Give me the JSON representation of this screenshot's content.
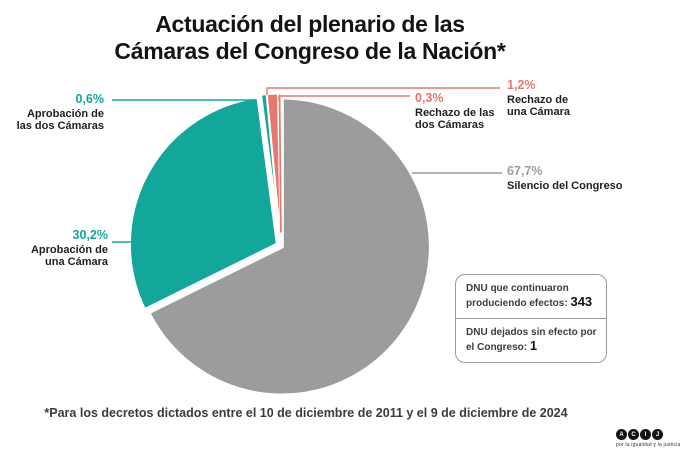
{
  "title": {
    "line1": "Actuación del plenario de las",
    "line2": "Cámaras del Congreso de la Nación*"
  },
  "colors": {
    "teal": "#13A79B",
    "salmon": "#E6786C",
    "gray": "#9C9C9C",
    "text": "#1F1F1F"
  },
  "chart_data": {
    "type": "pie",
    "title": "Actuación del plenario de las Cámaras del Congreso de la Nación*",
    "unit": "%",
    "start_angle": "12 o'clock, clockwise",
    "slices": [
      {
        "id": "silencio-del-congreso",
        "label": "Silencio del Congreso",
        "pct_label": "67,7%",
        "value": 67.7,
        "color": "#9C9C9C"
      },
      {
        "id": "aprobacion-una-camara",
        "label": "Aprobación de una Cámara",
        "pct_label": "30,2%",
        "value": 30.2,
        "color": "#13A79B"
      },
      {
        "id": "aprobacion-dos-camaras",
        "label": "Aprobación de las dos Cámaras",
        "pct_label": "0,6%",
        "value": 0.6,
        "color": "#13A79B"
      },
      {
        "id": "rechazo-una-camara",
        "label": "Rechazo de una Cámara",
        "pct_label": "1,2%",
        "value": 1.2,
        "color": "#E6786C"
      },
      {
        "id": "rechazo-dos-camaras",
        "label": "Rechazo de las dos Cámaras",
        "pct_label": "0,3%",
        "value": 0.3,
        "color": "#E6786C"
      }
    ]
  },
  "callouts": [
    {
      "pct": "0,6%",
      "line1": "Aprobación de",
      "line2": "las dos Cámaras"
    },
    {
      "pct": "30,2%",
      "line1": "Aprobación de",
      "line2": "una Cámara"
    },
    {
      "pct": "0,3%",
      "line1": "Rechazo de las",
      "line2": "dos Cámaras"
    },
    {
      "pct": "1,2%",
      "line1": "Rechazo de",
      "line2": "una Cámara"
    },
    {
      "pct": "67,7%",
      "line1": "Silencio del Congreso",
      "line2": ""
    }
  ],
  "info_box": {
    "row1_label": "DNU que continuaron produciendo efectos:",
    "row1_value": "343",
    "row2_label": "DNU dejados sin efecto por el Congreso:",
    "row2_value": "1"
  },
  "footnote": "*Para los decretos dictados entre el 10 de diciembre de 2011 y el 9 de diciembre de 2024",
  "logo": {
    "letters": [
      "A",
      "C",
      "I",
      "J"
    ],
    "tagline": "por la igualdad y la justicia"
  }
}
